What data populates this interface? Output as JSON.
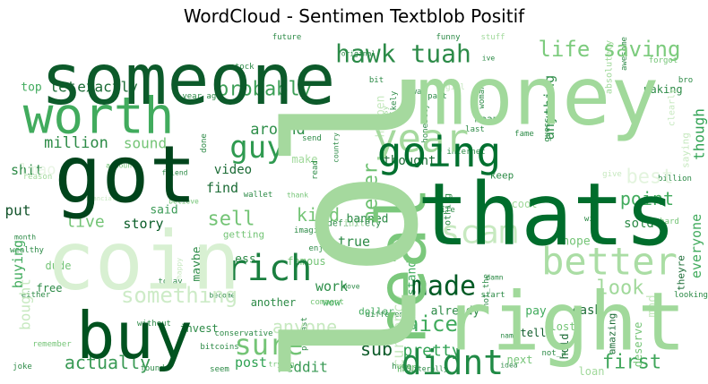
{
  "chart_data": {
    "type": "wordcloud",
    "title": "WordCloud - Sentimen Textblob Positif",
    "colormap": "Greens",
    "words": [
      {
        "text": "lol",
        "weight": 1.0,
        "color": "#a5d99e",
        "vertical": true
      },
      {
        "text": "money",
        "weight": 0.72,
        "color": "#a1d99b"
      },
      {
        "text": "someone",
        "weight": 0.62,
        "color": "#0c5a2a"
      },
      {
        "text": "thats",
        "weight": 0.68,
        "color": "#006d2c"
      },
      {
        "text": "coin",
        "weight": 0.52,
        "color": "#d8f0d2"
      },
      {
        "text": "right",
        "weight": 0.56,
        "color": "#a1d99b"
      },
      {
        "text": "buy",
        "weight": 0.52,
        "color": "#00521f"
      },
      {
        "text": "got",
        "weight": 0.58,
        "color": "#00441b"
      },
      {
        "text": "worth",
        "weight": 0.45,
        "color": "#41ab5d"
      },
      {
        "text": "real",
        "weight": 0.5,
        "color": "#7bc87c",
        "vertical": true
      },
      {
        "text": "going",
        "weight": 0.33,
        "color": "#00702f"
      },
      {
        "text": "better",
        "weight": 0.32,
        "color": "#aadda4"
      },
      {
        "text": "rich",
        "weight": 0.3,
        "color": "#1a7f3f"
      },
      {
        "text": "guy",
        "weight": 0.25,
        "color": "#2f9a50"
      },
      {
        "text": "hawk tuah",
        "weight": 0.2,
        "color": "#2c8b48"
      },
      {
        "text": "year",
        "weight": 0.3,
        "color": "#a5d99e"
      },
      {
        "text": "life saving",
        "weight": 0.18,
        "color": "#7ccb7d"
      },
      {
        "text": "didnt",
        "weight": 0.24,
        "color": "#208a45"
      },
      {
        "text": "made",
        "weight": 0.2,
        "color": "#005a24"
      },
      {
        "text": "sure",
        "weight": 0.2,
        "color": "#74c476"
      },
      {
        "text": "scam",
        "weight": 0.22,
        "color": "#c7e9c0"
      },
      {
        "text": "probably",
        "weight": 0.14,
        "color": "#3d9f57"
      },
      {
        "text": "something",
        "weight": 0.16,
        "color": "#cdebc7"
      },
      {
        "text": "actually",
        "weight": 0.14,
        "color": "#3a9a55"
      },
      {
        "text": "first",
        "weight": 0.14,
        "color": "#3fa65a"
      },
      {
        "text": "nice",
        "weight": 0.14,
        "color": "#41ab5d"
      },
      {
        "text": "look",
        "weight": 0.15,
        "color": "#a1d99b"
      },
      {
        "text": "best",
        "weight": 0.12,
        "color": "#e3f4de"
      },
      {
        "text": "point",
        "weight": 0.12,
        "color": "#41ab5d"
      },
      {
        "text": "anyone",
        "weight": 0.12,
        "color": "#c7e9c0"
      },
      {
        "text": "sell",
        "weight": 0.12,
        "color": "#74c476"
      },
      {
        "text": "never",
        "weight": 0.12,
        "color": "#6cc070",
        "vertical": true
      },
      {
        "text": "pretty",
        "weight": 0.1,
        "color": "#31a354"
      },
      {
        "text": "sub",
        "weight": 0.1,
        "color": "#0f5c2b"
      },
      {
        "text": "kind",
        "weight": 0.1,
        "color": "#74c476"
      },
      {
        "text": "around",
        "weight": 0.09,
        "color": "#2f8f4a"
      },
      {
        "text": "million",
        "weight": 0.09,
        "color": "#2b8a45"
      },
      {
        "text": "reddit",
        "weight": 0.09,
        "color": "#3a9a55"
      },
      {
        "text": "post",
        "weight": 0.09,
        "color": "#31a354"
      },
      {
        "text": "story",
        "weight": 0.08,
        "color": "#0b5e29"
      },
      {
        "text": "live",
        "weight": 0.09,
        "color": "#74c476"
      },
      {
        "text": "work",
        "weight": 0.08,
        "color": "#2c8e48"
      },
      {
        "text": "true",
        "weight": 0.08,
        "color": "#2c8a46"
      },
      {
        "text": "currency",
        "weight": 0.09,
        "color": "#c7e9c0",
        "vertical": true
      },
      {
        "text": "though",
        "weight": 0.08,
        "color": "#31a354",
        "vertical": true
      },
      {
        "text": "everyone",
        "weight": 0.08,
        "color": "#41ab5d",
        "vertical": true
      },
      {
        "text": "bought",
        "weight": 0.08,
        "color": "#c7e9c0",
        "vertical": true
      },
      {
        "text": "anything",
        "weight": 0.07,
        "color": "#2a8a45",
        "vertical": true
      },
      {
        "text": "exactly",
        "weight": 0.07,
        "color": "#1b6b35"
      },
      {
        "text": "let",
        "weight": 0.07,
        "color": "#1b6b35"
      },
      {
        "text": "sound",
        "weight": 0.07,
        "color": "#74c476"
      },
      {
        "text": "shit",
        "weight": 0.07,
        "color": "#2c8a46"
      },
      {
        "text": "put",
        "weight": 0.07,
        "color": "#12532a"
      },
      {
        "text": "video",
        "weight": 0.06,
        "color": "#1b6b35"
      },
      {
        "text": "find",
        "weight": 0.07,
        "color": "#1b6b35"
      },
      {
        "text": "said",
        "weight": 0.06,
        "color": "#3a9a55"
      },
      {
        "text": "thought",
        "weight": 0.06,
        "color": "#1b6b35"
      },
      {
        "text": "sold",
        "weight": 0.06,
        "color": "#2c8a46"
      },
      {
        "text": "lmao",
        "weight": 0.07,
        "color": "#e8f5e4"
      },
      {
        "text": "maybe",
        "weight": 0.06,
        "color": "#2c8a46",
        "vertical": true
      },
      {
        "text": "buying",
        "weight": 0.06,
        "color": "#41ab5d",
        "vertical": true
      },
      {
        "text": "mod",
        "weight": 0.08,
        "color": "#c7e9c0",
        "vertical": true
      },
      {
        "text": "cash",
        "weight": 0.05,
        "color": "#1b6b35"
      },
      {
        "text": "hope",
        "weight": 0.05,
        "color": "#74c476"
      },
      {
        "text": "understand",
        "weight": 0.05,
        "color": "#41ab5d",
        "vertical": true
      },
      {
        "text": "already",
        "weight": 0.05,
        "color": "#2c8a46"
      },
      {
        "text": "man",
        "weight": 0.05,
        "color": "#74c476"
      },
      {
        "text": "famous",
        "weight": 0.05,
        "color": "#74c476"
      },
      {
        "text": "less",
        "weight": 0.04,
        "color": "#2c8a46"
      },
      {
        "text": "top",
        "weight": 0.05,
        "color": "#41ab5d"
      },
      {
        "text": "dude",
        "weight": 0.05,
        "color": "#74c476"
      },
      {
        "text": "free",
        "weight": 0.04,
        "color": "#2c8a46"
      },
      {
        "text": "another",
        "weight": 0.04,
        "color": "#2c8a46"
      },
      {
        "text": "invest",
        "weight": 0.04,
        "color": "#2c8a46"
      },
      {
        "text": "hold",
        "weight": 0.04,
        "color": "#1b6b35",
        "vertical": true
      },
      {
        "text": "tell",
        "weight": 0.04,
        "color": "#0f5c2b"
      },
      {
        "text": "pay",
        "weight": 0.04,
        "color": "#41ab5d"
      },
      {
        "text": "cool",
        "weight": 0.04,
        "color": "#a1d99b"
      },
      {
        "text": "next",
        "weight": 0.04,
        "color": "#74c476"
      },
      {
        "text": "wow",
        "weight": 0.04,
        "color": "#41ab5d"
      },
      {
        "text": "getting",
        "weight": 0.04,
        "color": "#74c476"
      },
      {
        "text": "keep",
        "weight": 0.04,
        "color": "#2c8a46"
      },
      {
        "text": "lost",
        "weight": 0.04,
        "color": "#74c476"
      },
      {
        "text": "deserve",
        "weight": 0.04,
        "color": "#74c476",
        "vertical": true
      },
      {
        "text": "amazing",
        "weight": 0.04,
        "color": "#1b6b35",
        "vertical": true
      },
      {
        "text": "theyre",
        "weight": 0.04,
        "color": "#1b6b35",
        "vertical": true
      },
      {
        "text": "loan",
        "weight": 0.04,
        "color": "#a1d99b"
      },
      {
        "text": "dollar",
        "weight": 0.04,
        "color": "#41ab5d"
      },
      {
        "text": "banned",
        "weight": 0.04,
        "color": "#2c8a46"
      },
      {
        "text": "happen",
        "weight": 0.05,
        "color": "#c7e9c0",
        "vertical": true
      },
      {
        "text": "saying",
        "weight": 0.05,
        "color": "#c7e9c0",
        "vertical": true
      },
      {
        "text": "mean",
        "weight": 0.04,
        "color": "#2c8a46"
      },
      {
        "text": "likely",
        "weight": 0.04,
        "color": "#2c8a46",
        "vertical": true
      },
      {
        "text": "nothing",
        "weight": 0.03,
        "color": "#2c8a46",
        "vertical": true
      },
      {
        "text": "fame",
        "weight": 0.03,
        "color": "#2c8a46"
      },
      {
        "text": "funny",
        "weight": 0.03,
        "color": "#2c8a46"
      },
      {
        "text": "stuff",
        "weight": 0.02,
        "color": "#a1d99b"
      },
      {
        "text": "future",
        "weight": 0.02,
        "color": "#2c8a46"
      },
      {
        "text": "bit",
        "weight": 0.02,
        "color": "#2c8a46"
      },
      {
        "text": "year ago",
        "weight": 0.02,
        "color": "#2c8a46"
      },
      {
        "text": "stock",
        "weight": 0.02,
        "color": "#2c8a46"
      },
      {
        "text": "forgot",
        "weight": 0.02,
        "color": "#74c476"
      },
      {
        "text": "awesome",
        "weight": 0.02,
        "color": "#2c8a46",
        "vertical": true
      },
      {
        "text": "making",
        "weight": 0.02,
        "color": "#2c8a46"
      },
      {
        "text": "bro",
        "weight": 0.02,
        "color": "#2c8a46"
      },
      {
        "text": "girl",
        "weight": 0.03,
        "color": "#c7e9c0"
      },
      {
        "text": "woman",
        "weight": 0.02,
        "color": "#2c8a46",
        "vertical": true
      },
      {
        "text": "part",
        "weight": 0.02,
        "color": "#2c8a46"
      },
      {
        "text": "away",
        "weight": 0.02,
        "color": "#2c8a46"
      },
      {
        "text": "honestly",
        "weight": 0.02,
        "color": "#2c8a46",
        "vertical": true
      },
      {
        "text": "last",
        "weight": 0.02,
        "color": "#2c8a46"
      },
      {
        "text": "send",
        "weight": 0.02,
        "color": "#2c8a46"
      },
      {
        "text": "internet",
        "weight": 0.02,
        "color": "#2c8a46"
      },
      {
        "text": "done",
        "weight": 0.02,
        "color": "#2c8a46",
        "vertical": true
      },
      {
        "text": "country",
        "weight": 0.02,
        "color": "#2c8a46",
        "vertical": true
      },
      {
        "text": "account",
        "weight": 0.02,
        "color": "#74c476"
      },
      {
        "text": "make",
        "weight": 0.02,
        "color": "#a1d99b"
      },
      {
        "text": "read",
        "weight": 0.02,
        "color": "#2c8a46",
        "vertical": true
      },
      {
        "text": "give",
        "weight": 0.03,
        "color": "#c7e9c0"
      },
      {
        "text": "billion",
        "weight": 0.02,
        "color": "#2c8a46"
      },
      {
        "text": "friend",
        "weight": 0.02,
        "color": "#2c8a46"
      },
      {
        "text": "reason",
        "weight": 0.02,
        "color": "#a1d99b"
      },
      {
        "text": "wallet",
        "weight": 0.02,
        "color": "#2c8a46"
      },
      {
        "text": "believe",
        "weight": 0.02,
        "color": "#74c476"
      },
      {
        "text": "thank",
        "weight": 0.02,
        "color": "#74c476"
      },
      {
        "text": "life",
        "weight": 0.02,
        "color": "#2c8a46"
      },
      {
        "text": "imagine",
        "weight": 0.02,
        "color": "#2c8a46"
      },
      {
        "text": "win",
        "weight": 0.02,
        "color": "#2c8a46"
      },
      {
        "text": "hard",
        "weight": 0.02,
        "color": "#74c476"
      },
      {
        "text": "month",
        "weight": 0.02,
        "color": "#2c8a46"
      },
      {
        "text": "wealthy",
        "weight": 0.02,
        "color": "#2c8a46"
      },
      {
        "text": "enjoy",
        "weight": 0.02,
        "color": "#2c8a46"
      },
      {
        "text": "move",
        "weight": 0.02,
        "color": "#2c8a46"
      },
      {
        "text": "comment",
        "weight": 0.02,
        "color": "#74c476"
      },
      {
        "text": "become",
        "weight": 0.02,
        "color": "#2c8a46"
      },
      {
        "text": "either",
        "weight": 0.02,
        "color": "#2c8a46"
      },
      {
        "text": "today",
        "weight": 0.02,
        "color": "#2c8a46"
      },
      {
        "text": "without",
        "weight": 0.02,
        "color": "#2c8a46"
      },
      {
        "text": "conservative",
        "weight": 0.02,
        "color": "#2c8a46"
      },
      {
        "text": "podcast",
        "weight": 0.02,
        "color": "#2c8a46",
        "vertical": true
      },
      {
        "text": "bitcoins",
        "weight": 0.02,
        "color": "#2c8a46"
      },
      {
        "text": "seem",
        "weight": 0.02,
        "color": "#2c8a46"
      },
      {
        "text": "trying",
        "weight": 0.02,
        "color": "#74c476"
      },
      {
        "text": "remember",
        "weight": 0.02,
        "color": "#74c476"
      },
      {
        "text": "joke",
        "weight": 0.02,
        "color": "#2c8a46"
      },
      {
        "text": "found",
        "weight": 0.02,
        "color": "#2c8a46"
      },
      {
        "text": "huge",
        "weight": 0.02,
        "color": "#2c8a46"
      },
      {
        "text": "different",
        "weight": 0.02,
        "color": "#2c8a46"
      },
      {
        "text": "literally",
        "weight": 0.02,
        "color": "#2c8a46"
      },
      {
        "text": "not_the",
        "weight": 0.02,
        "color": "#2c8a46",
        "vertical": true
      },
      {
        "text": "idea",
        "weight": 0.02,
        "color": "#2c8a46"
      },
      {
        "text": "start",
        "weight": 0.02,
        "color": "#2c8a46"
      },
      {
        "text": "damn",
        "weight": 0.02,
        "color": "#2c8a46"
      },
      {
        "text": "not_a",
        "weight": 0.02,
        "color": "#2c8a46"
      },
      {
        "text": "looking",
        "weight": 0.02,
        "color": "#2c8a46"
      },
      {
        "text": "name",
        "weight": 0.02,
        "color": "#2c8a46"
      },
      {
        "text": "guess",
        "weight": 0.02,
        "color": "#2c8a46",
        "vertical": true
      },
      {
        "text": "original",
        "weight": 0.02,
        "color": "#2c8a46"
      },
      {
        "text": "ive",
        "weight": 0.02,
        "color": "#2c8a46"
      },
      {
        "text": "easy",
        "weight": 0.02,
        "color": "#a1d99b",
        "vertical": true
      },
      {
        "text": "absolutely",
        "weight": 0.02,
        "color": "#a1d99b",
        "vertical": true
      },
      {
        "text": "clearly",
        "weight": 0.02,
        "color": "#c7e9c0",
        "vertical": true
      },
      {
        "text": "financial",
        "weight": 0.02,
        "color": "#c7e9c0"
      },
      {
        "text": "happy",
        "weight": 0.02,
        "color": "#c7e9c0",
        "vertical": true
      },
      {
        "text": "definitely",
        "weight": 0.02,
        "color": "#2c8a46"
      },
      {
        "text": "full",
        "weight": 0.02,
        "color": "#c7e9c0"
      }
    ]
  }
}
